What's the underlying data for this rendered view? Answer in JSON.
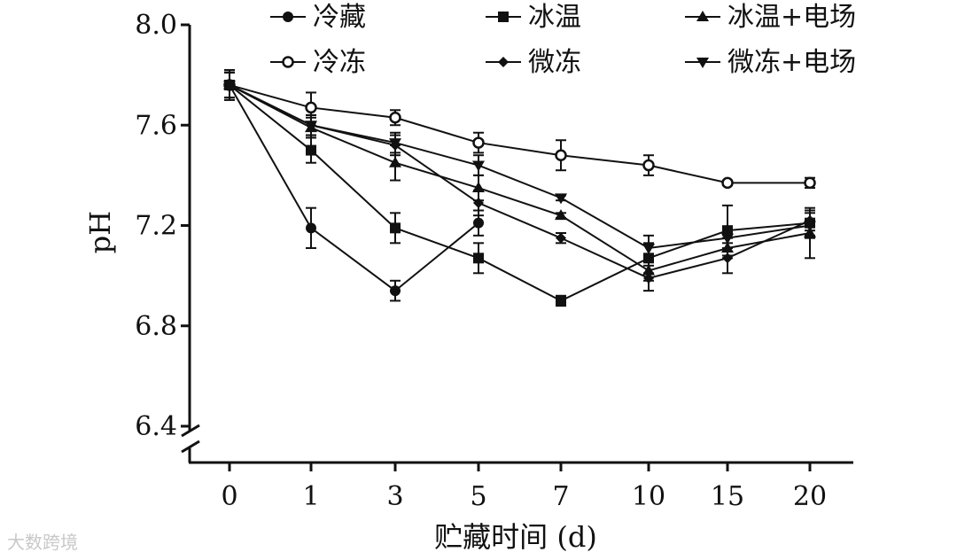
{
  "chart_data": {
    "type": "line",
    "xlabel": "贮藏时间 (d)",
    "ylabel": "pH",
    "categories": [
      "0",
      "1",
      "3",
      "5",
      "7",
      "10",
      "15",
      "20"
    ],
    "ylim": [
      6.4,
      8.0
    ],
    "yticks": [
      "6.4",
      "6.8",
      "7.2",
      "7.6",
      "8.0"
    ],
    "axis_break": true,
    "legend_position": "top",
    "series": [
      {
        "name": "冷藏",
        "marker": "filled-circle",
        "values": [
          7.76,
          7.19,
          6.94,
          7.21,
          null,
          null,
          null,
          null
        ],
        "errors": [
          0.06,
          0.08,
          0.04,
          0.05,
          null,
          null,
          null,
          null
        ]
      },
      {
        "name": "冷冻",
        "marker": "open-circle",
        "values": [
          7.76,
          7.67,
          7.63,
          7.53,
          7.48,
          7.44,
          7.37,
          7.37
        ],
        "errors": [
          0.05,
          0.06,
          0.03,
          0.04,
          0.06,
          0.04,
          0.01,
          0.02
        ]
      },
      {
        "name": "冰温",
        "marker": "filled-square",
        "values": [
          7.76,
          7.5,
          7.19,
          7.07,
          6.9,
          7.07,
          7.18,
          7.21
        ],
        "errors": [
          0.05,
          0.05,
          0.06,
          0.06,
          0.02,
          0.06,
          0.1,
          0.05
        ]
      },
      {
        "name": "微冻",
        "marker": "filled-diamond",
        "values": [
          7.76,
          7.6,
          7.52,
          7.29,
          7.15,
          6.99,
          7.07,
          7.22
        ],
        "errors": [
          0.05,
          0.04,
          0.04,
          0.05,
          0.02,
          0.05,
          0.06,
          0.04
        ]
      },
      {
        "name": "冰温+电场",
        "marker": "filled-triangle-up",
        "values": [
          7.76,
          7.59,
          7.45,
          7.35,
          7.24,
          7.02,
          7.11,
          7.17
        ],
        "errors": [
          0.05,
          0.04,
          0.07,
          0.05,
          0.01,
          0.04,
          0.04,
          0.1
        ]
      },
      {
        "name": "微冻+电场",
        "marker": "filled-triangle-down",
        "values": [
          7.76,
          7.6,
          7.53,
          7.44,
          7.31,
          7.11,
          7.15,
          7.2
        ],
        "errors": [
          0.05,
          0.04,
          0.04,
          0.04,
          0.01,
          0.05,
          0.04,
          0.05
        ]
      }
    ]
  },
  "watermark": "大数跨境"
}
